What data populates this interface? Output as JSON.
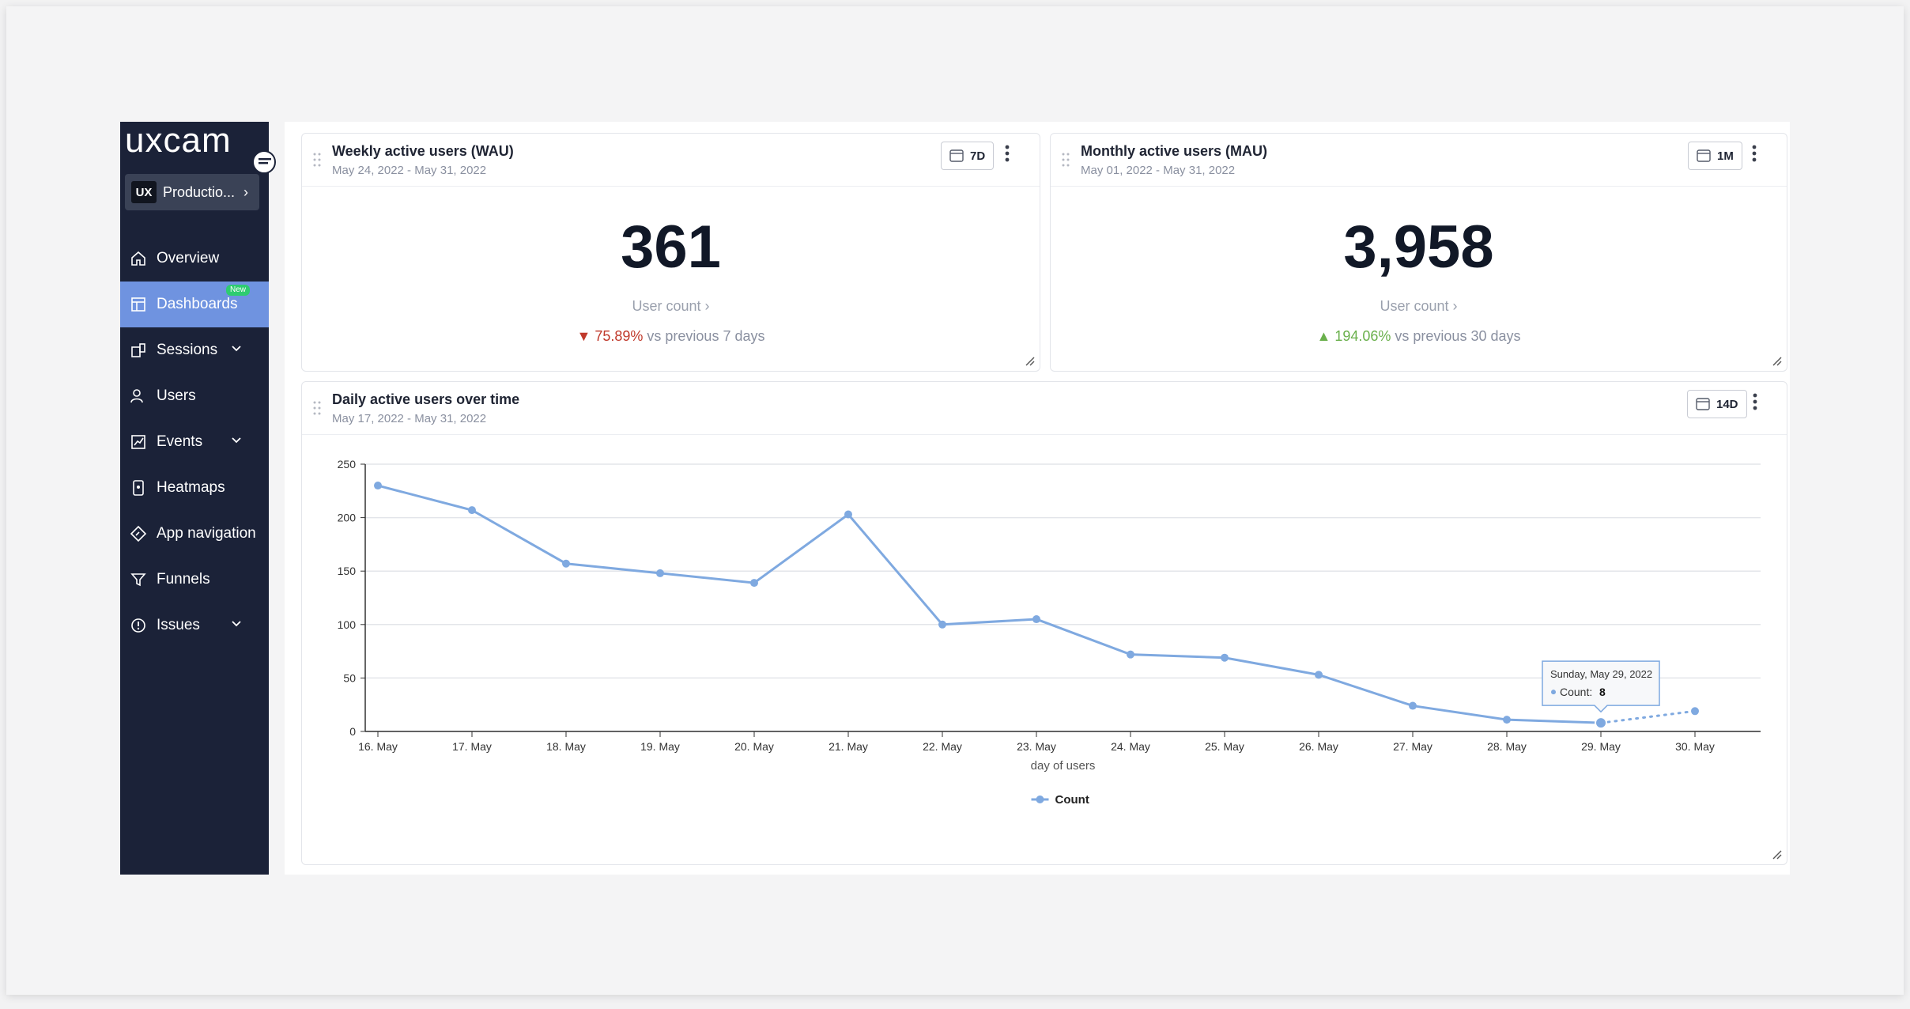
{
  "app": {
    "logo_text": "uxcam"
  },
  "sidebar": {
    "project_logo": "UX",
    "project_name": "Productio...",
    "items": [
      {
        "label": "Overview",
        "icon": "home-icon"
      },
      {
        "label": "Dashboards",
        "icon": "dashboard-icon",
        "badge": "New",
        "active": true
      },
      {
        "label": "Sessions",
        "icon": "sessions-icon",
        "expandable": true
      },
      {
        "label": "Users",
        "icon": "users-icon"
      },
      {
        "label": "Events",
        "icon": "events-icon",
        "expandable": true
      },
      {
        "label": "Heatmaps",
        "icon": "heatmap-icon"
      },
      {
        "label": "App navigation",
        "icon": "navigation-icon"
      },
      {
        "label": "Funnels",
        "icon": "funnel-icon"
      },
      {
        "label": "Issues",
        "icon": "issues-icon",
        "expandable": true
      }
    ]
  },
  "wau": {
    "title": "Weekly active users (WAU)",
    "date_range": "May 24, 2022 - May 31, 2022",
    "range_label": "7D",
    "value": "361",
    "metric_link": "User count ›",
    "change_pct": "75.89%",
    "change_text": " vs previous 7 days",
    "change_direction": "down"
  },
  "mau": {
    "title": "Monthly active users (MAU)",
    "date_range": "May 01, 2022 - May 31, 2022",
    "range_label": "1M",
    "value": "3,958",
    "metric_link": "User count ›",
    "change_pct": "194.06%",
    "change_text": " vs previous 30 days",
    "change_direction": "up"
  },
  "dau": {
    "title": "Daily active users over time",
    "date_range": "May 17, 2022 - May 31, 2022",
    "range_label": "14D"
  },
  "colors": {
    "line": "#7fa9e0",
    "sidebar": "#1b2238",
    "active": "#6f93e0"
  },
  "chart_data": {
    "type": "line",
    "categories": [
      "16. May",
      "17. May",
      "18. May",
      "19. May",
      "20. May",
      "21. May",
      "22. May",
      "23. May",
      "24. May",
      "25. May",
      "26. May",
      "27. May",
      "28. May",
      "29. May",
      "30. May"
    ],
    "series": [
      {
        "name": "Count",
        "values": [
          230,
          207,
          157,
          148,
          139,
          203,
          100,
          105,
          72,
          69,
          53,
          24,
          11,
          8,
          19
        ]
      }
    ],
    "ylim": [
      0,
      250
    ],
    "yticks": [
      0,
      50,
      100,
      150,
      200,
      250
    ],
    "xlabel": "day of users",
    "ylabel": "",
    "legend": "bottom-center",
    "partial_from_index": 13,
    "tooltip": {
      "date": "Sunday, May 29, 2022",
      "label": "Count:",
      "value": "8",
      "index": 13
    }
  }
}
